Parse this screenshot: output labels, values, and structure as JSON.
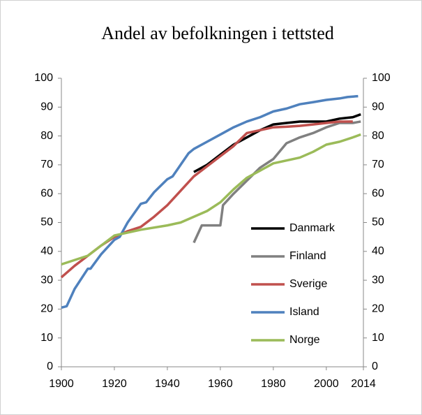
{
  "chart_data": {
    "type": "line",
    "title": "Andel av befolkningen i tettsted",
    "xlim": [
      1900,
      2014
    ],
    "xticks": [
      1900,
      1920,
      1940,
      1960,
      1980,
      2000,
      2014
    ],
    "ylim": [
      0,
      100
    ],
    "yticks": [
      0,
      10,
      20,
      30,
      40,
      50,
      60,
      70,
      80,
      90,
      100
    ],
    "y2lim": [
      0,
      100
    ],
    "y2ticks": [
      0,
      10,
      20,
      30,
      40,
      50,
      60,
      70,
      80,
      90,
      100
    ],
    "legend": "inside-right",
    "series": [
      {
        "name": "Danmark",
        "color": "#000000",
        "x": [
          1950,
          1955,
          1960,
          1965,
          1970,
          1975,
          1980,
          1985,
          1990,
          2000,
          2005,
          2010,
          2013
        ],
        "values": [
          67.5,
          70,
          73.5,
          77,
          79.5,
          82,
          84,
          84.5,
          85,
          85,
          86,
          86.5,
          87.5
        ]
      },
      {
        "name": "Finland",
        "color": "#808080",
        "x": [
          1950,
          1953,
          1960,
          1961,
          1965,
          1970,
          1975,
          1980,
          1985,
          1990,
          1995,
          2000,
          2005,
          2010,
          2013
        ],
        "values": [
          43,
          49,
          49,
          56,
          60,
          64.5,
          69,
          72,
          77.5,
          79.5,
          81,
          83,
          84.5,
          84.5,
          85
        ]
      },
      {
        "name": "Sverige",
        "color": "#c0504d",
        "x": [
          1900,
          1905,
          1910,
          1915,
          1920,
          1925,
          1930,
          1935,
          1940,
          1945,
          1950,
          1955,
          1960,
          1965,
          1970,
          1975,
          1980,
          1985,
          1990,
          1995,
          2000,
          2005,
          2010
        ],
        "values": [
          31,
          35,
          38.5,
          42,
          45,
          47,
          48.5,
          52,
          56,
          61,
          66,
          69.5,
          73,
          76.5,
          81,
          82,
          83,
          83.2,
          83.5,
          84,
          84.5,
          85,
          85
        ]
      },
      {
        "name": "Island",
        "color": "#4f81bd",
        "x": [
          1900,
          1902,
          1905,
          1910,
          1911,
          1915,
          1920,
          1922,
          1925,
          1930,
          1932,
          1935,
          1940,
          1942,
          1945,
          1948,
          1950,
          1955,
          1960,
          1965,
          1970,
          1975,
          1980,
          1985,
          1990,
          1995,
          2000,
          2005,
          2008,
          2012
        ],
        "values": [
          20.5,
          21,
          27,
          34,
          34,
          39,
          44,
          45,
          50,
          56.5,
          57,
          60.5,
          65,
          66,
          70,
          74,
          75.5,
          78,
          80.5,
          83,
          85,
          86.5,
          88.5,
          89.5,
          91,
          91.7,
          92.5,
          93,
          93.5,
          93.8
        ]
      },
      {
        "name": "Norge",
        "color": "#9bbb59",
        "x": [
          1900,
          1910,
          1915,
          1920,
          1925,
          1930,
          1940,
          1945,
          1950,
          1955,
          1960,
          1965,
          1970,
          1975,
          1980,
          1985,
          1990,
          1995,
          2000,
          2005,
          2010,
          2013
        ],
        "values": [
          35.5,
          38.5,
          42,
          45.5,
          46.5,
          47.5,
          49,
          50,
          52,
          54,
          57,
          61.5,
          65.5,
          68,
          70.5,
          71.5,
          72.5,
          74.5,
          77,
          78,
          79.5,
          80.5
        ]
      }
    ]
  }
}
